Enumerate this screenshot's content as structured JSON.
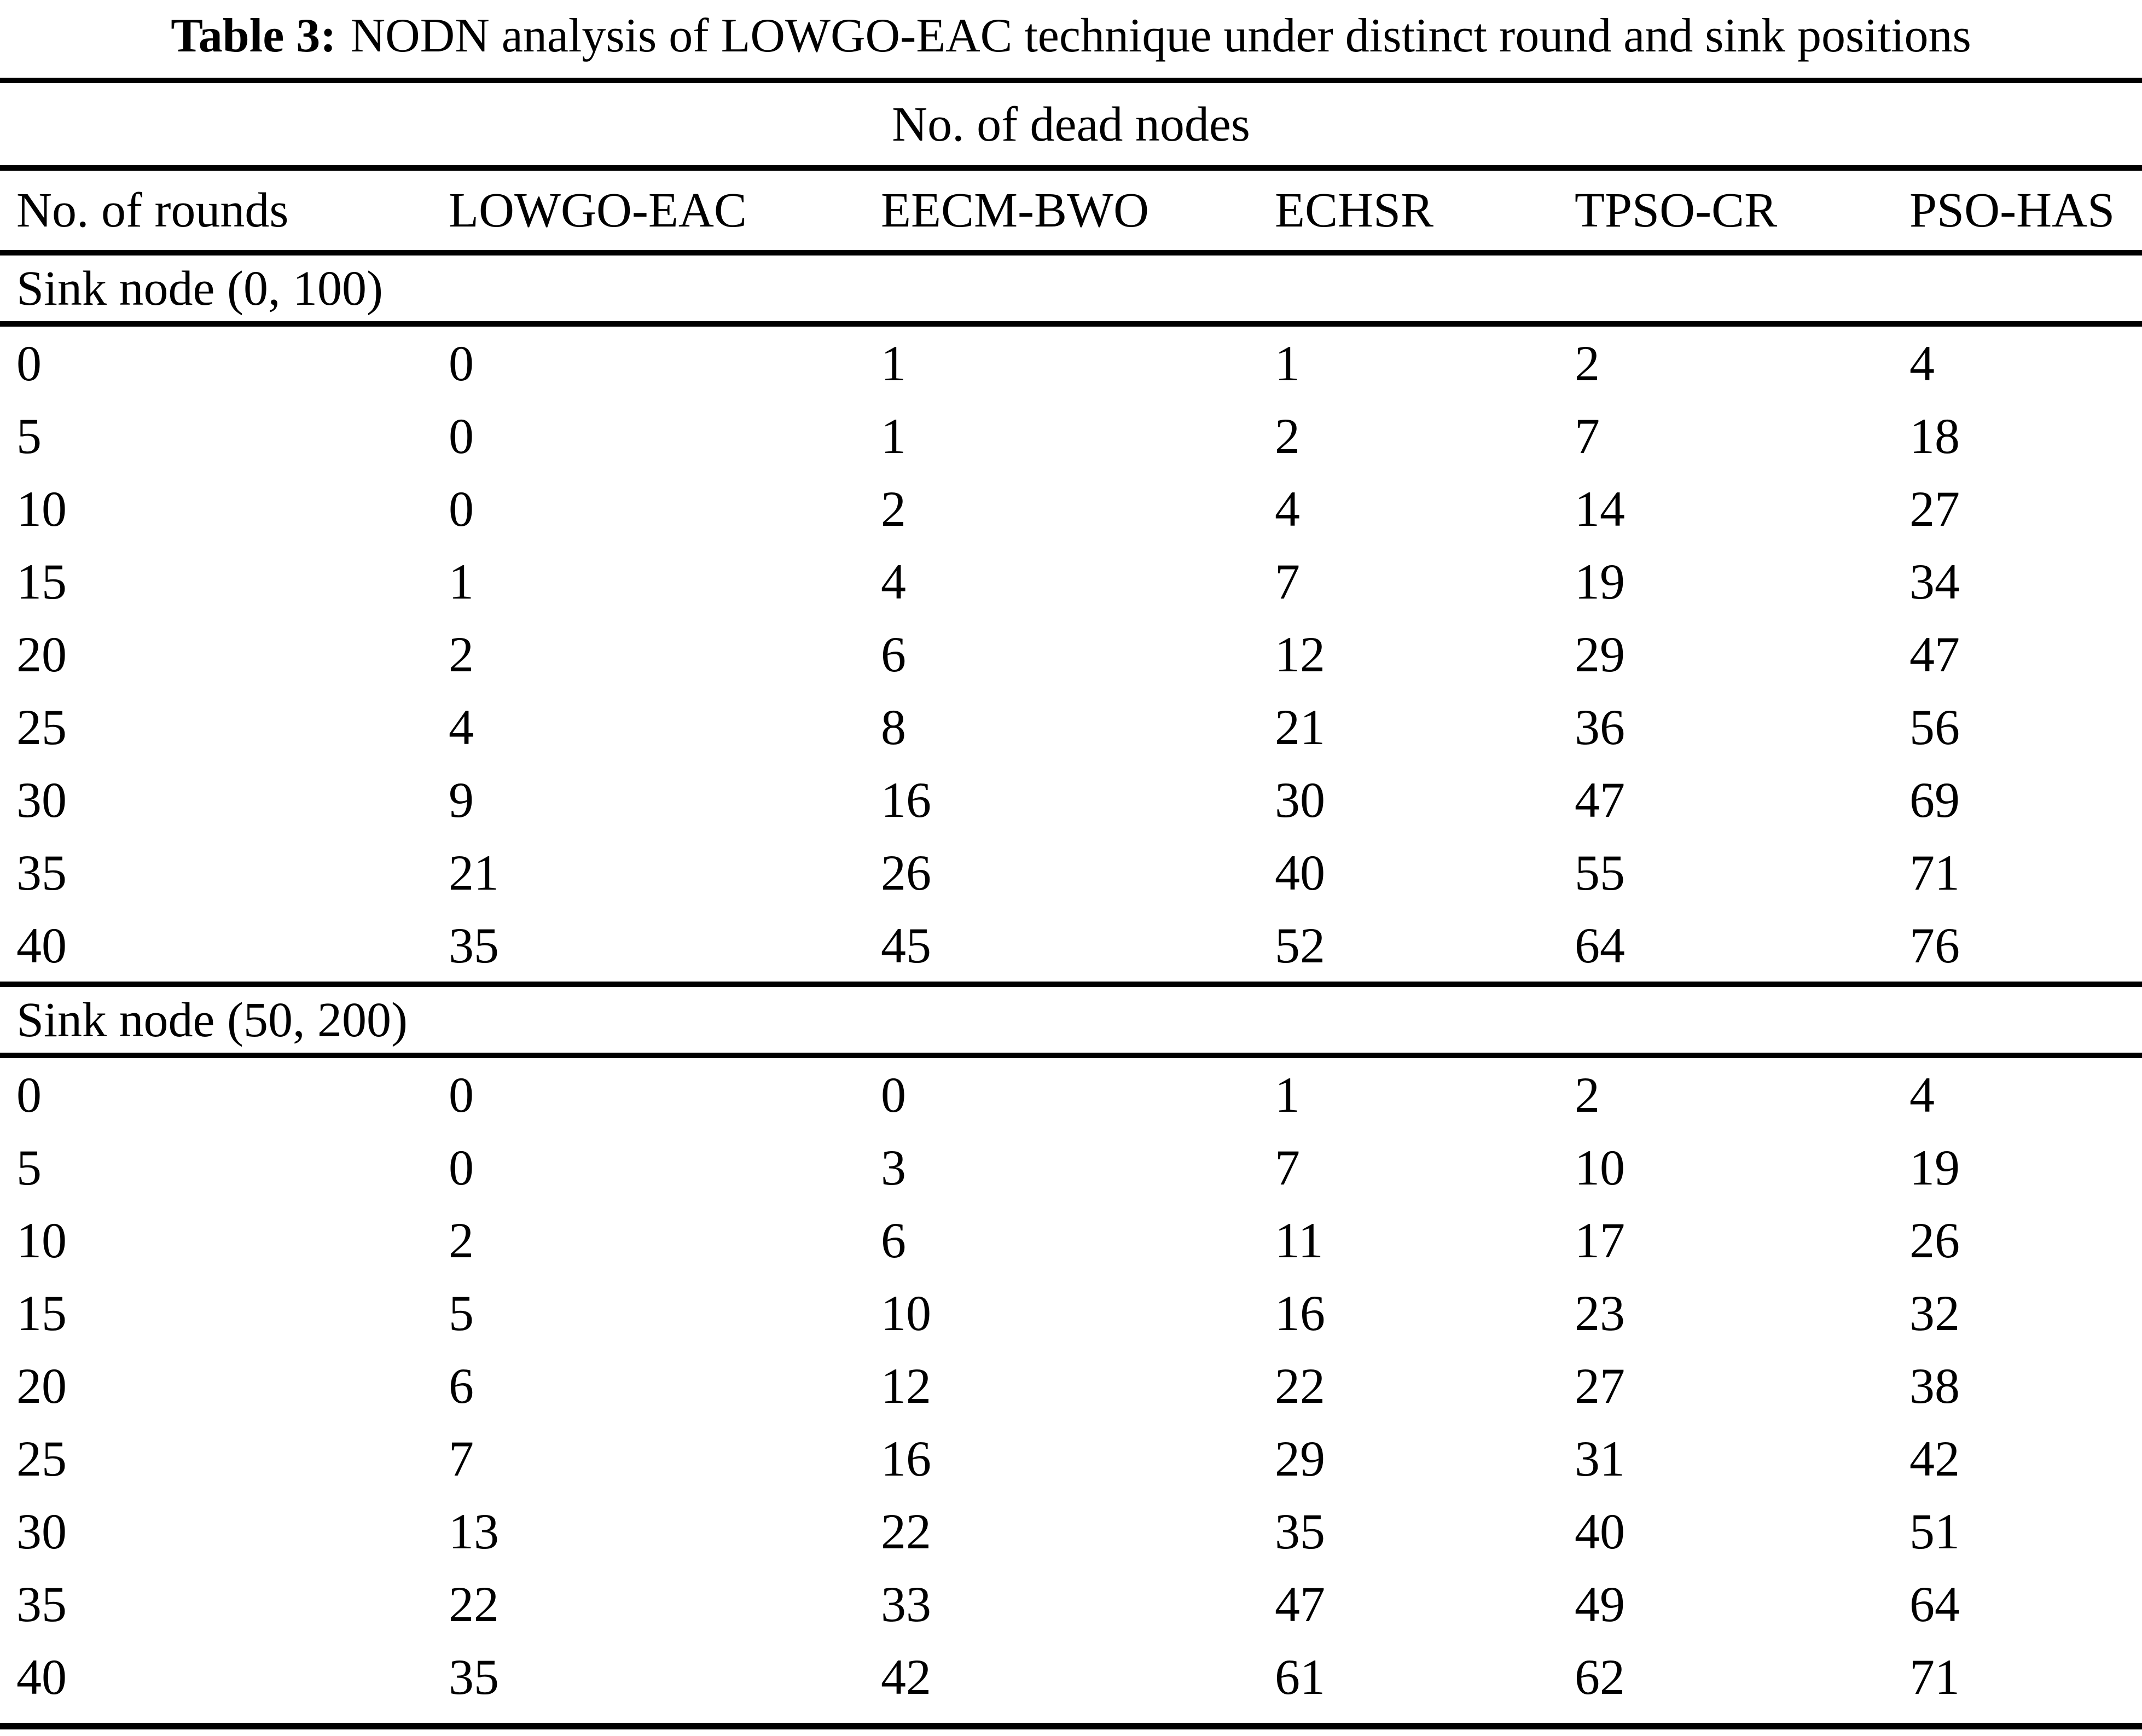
{
  "title": {
    "bold": "Table 3:",
    "text": "NODN analysis of LOWGO-EAC technique under distinct round and sink positions"
  },
  "table": {
    "span_header": "No. of dead nodes",
    "columns": [
      "No. of rounds",
      "LOWGO-EAC",
      "EECM-BWO",
      "ECHSR",
      "TPSO-CR",
      "PSO-HAS"
    ],
    "sections": [
      {
        "label": "Sink node (0, 100)",
        "rows": [
          [
            0,
            0,
            1,
            1,
            2,
            4
          ],
          [
            5,
            0,
            1,
            2,
            7,
            18
          ],
          [
            10,
            0,
            2,
            4,
            14,
            27
          ],
          [
            15,
            1,
            4,
            7,
            19,
            34
          ],
          [
            20,
            2,
            6,
            12,
            29,
            47
          ],
          [
            25,
            4,
            8,
            21,
            36,
            56
          ],
          [
            30,
            9,
            16,
            30,
            47,
            69
          ],
          [
            35,
            21,
            26,
            40,
            55,
            71
          ],
          [
            40,
            35,
            45,
            52,
            64,
            76
          ]
        ]
      },
      {
        "label": "Sink node (50, 200)",
        "rows": [
          [
            0,
            0,
            0,
            1,
            2,
            4
          ],
          [
            5,
            0,
            3,
            7,
            10,
            19
          ],
          [
            10,
            2,
            6,
            11,
            17,
            26
          ],
          [
            15,
            5,
            10,
            16,
            23,
            32
          ],
          [
            20,
            6,
            12,
            22,
            27,
            38
          ],
          [
            25,
            7,
            16,
            29,
            31,
            42
          ],
          [
            30,
            13,
            22,
            35,
            40,
            51
          ],
          [
            35,
            22,
            33,
            47,
            49,
            64
          ],
          [
            40,
            35,
            42,
            61,
            62,
            71
          ]
        ]
      }
    ]
  }
}
